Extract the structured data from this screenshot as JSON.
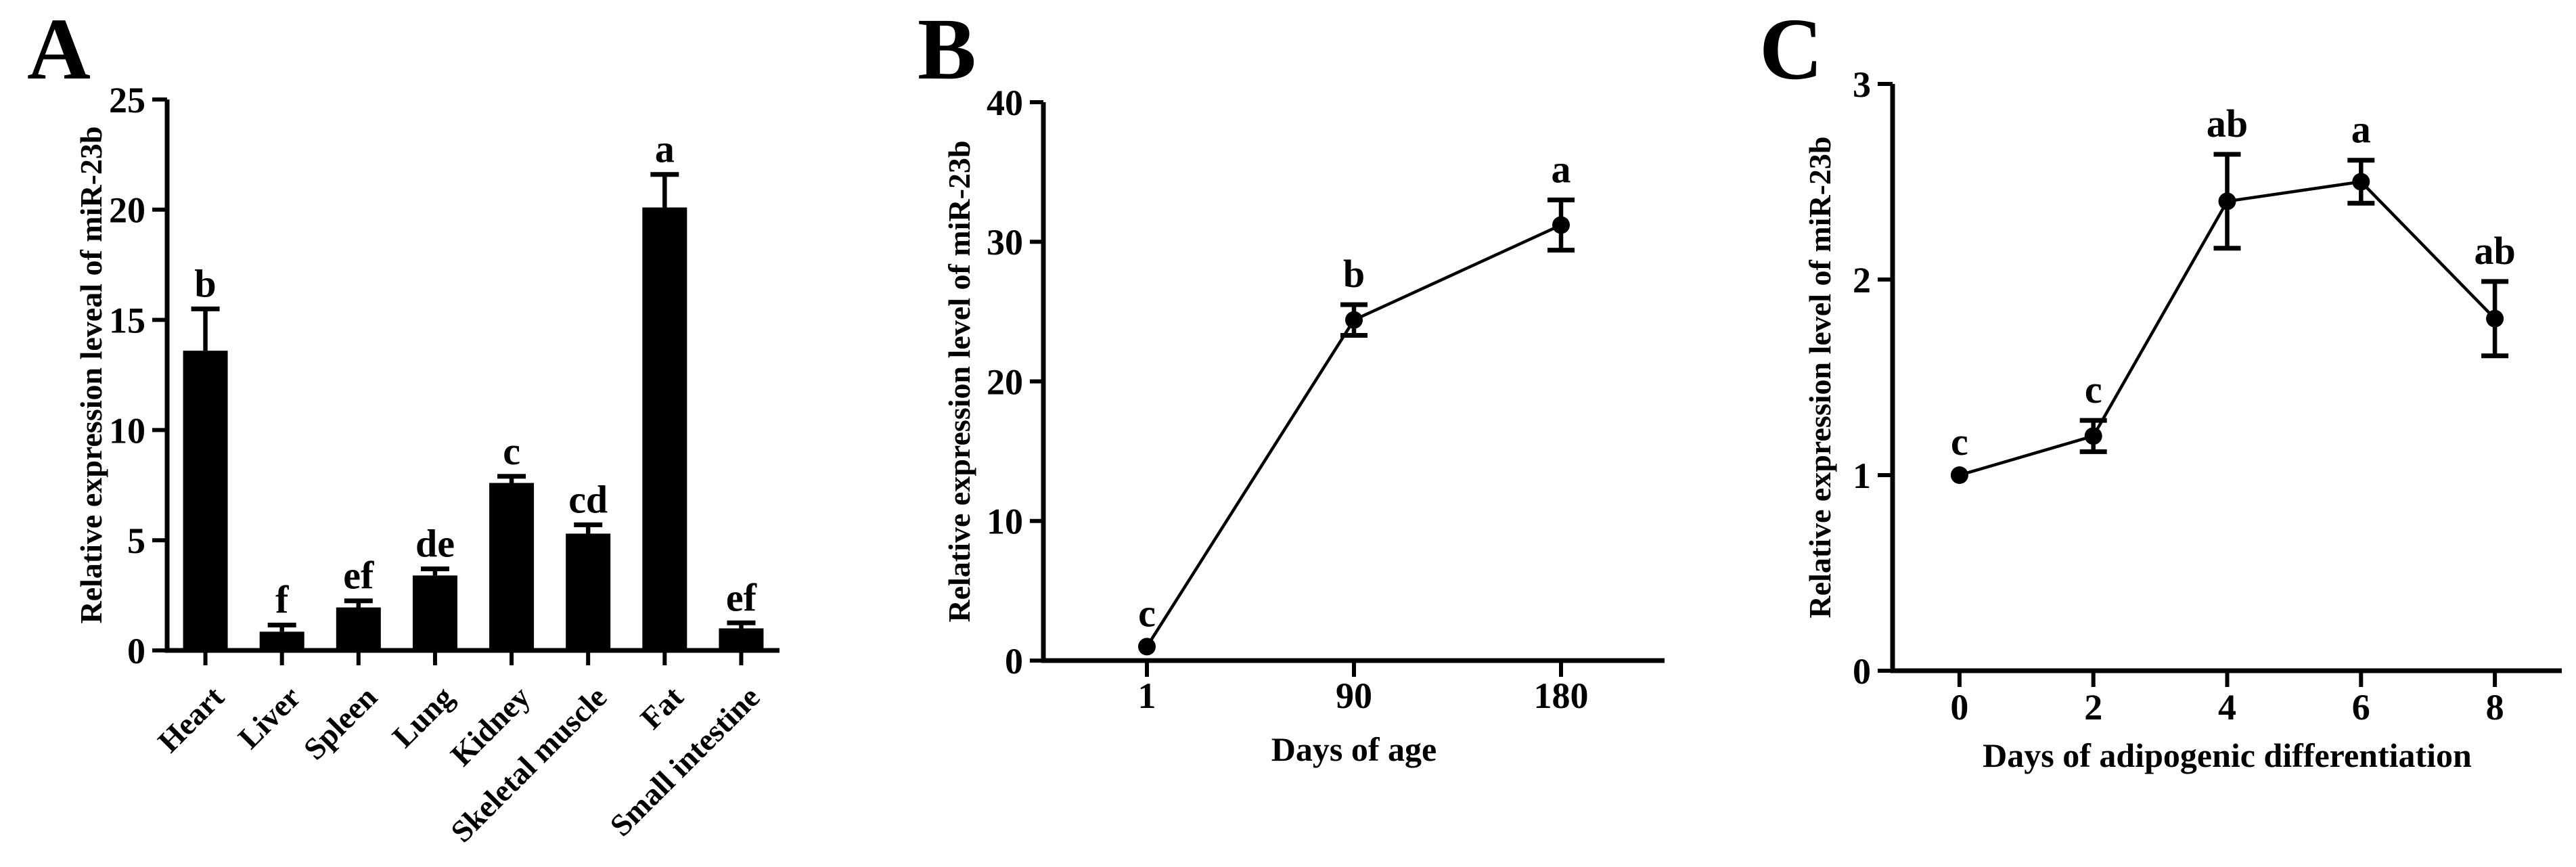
{
  "figure": {
    "background": "#ffffff",
    "ink_color": "#000000",
    "panels": [
      {
        "id": "A",
        "label": "A",
        "chart_data": {
          "type": "bar",
          "title": "",
          "xlabel": "",
          "ylabel": "Relative expression leveal of miR-23b",
          "ylim": [
            0,
            25
          ],
          "yticks": [
            0,
            5,
            10,
            15,
            20,
            25
          ],
          "grid": false,
          "categories": [
            "Heart",
            "Liver",
            "Spleen",
            "Lung",
            "Kidney",
            "Skeletal muscle",
            "Fat",
            "Small intestine"
          ],
          "values": [
            13.6,
            0.85,
            1.95,
            3.4,
            7.6,
            5.3,
            20.1,
            1.0
          ],
          "errors": [
            1.9,
            0.3,
            0.3,
            0.3,
            0.3,
            0.4,
            1.5,
            0.25
          ],
          "sig_letters": [
            "b",
            "f",
            "ef",
            "de",
            "c",
            "cd",
            "a",
            "ef"
          ],
          "bar_color": "#000000"
        }
      },
      {
        "id": "B",
        "label": "B",
        "chart_data": {
          "type": "line",
          "title": "",
          "xlabel": "Days of age",
          "ylabel": "Relative expression level of miR-23b",
          "ylim": [
            0,
            40
          ],
          "yticks": [
            0,
            10,
            20,
            30,
            40
          ],
          "grid": false,
          "categories": [
            "1",
            "90",
            "180"
          ],
          "values": [
            1.0,
            24.4,
            31.2
          ],
          "errors": [
            0,
            1.1,
            1.8
          ],
          "sig_letters": [
            "c",
            "b",
            "a"
          ],
          "line_color": "#000000",
          "marker": "circle"
        }
      },
      {
        "id": "C",
        "label": "C",
        "chart_data": {
          "type": "line",
          "title": "",
          "xlabel": "Days of adipogenic differentiation",
          "ylabel": "Relative expression level of miR-23b",
          "ylim": [
            0,
            3
          ],
          "yticks": [
            0,
            1,
            2,
            3
          ],
          "grid": false,
          "categories": [
            "0",
            "2",
            "4",
            "6",
            "8"
          ],
          "values": [
            1.0,
            1.2,
            2.4,
            2.5,
            1.8
          ],
          "errors": [
            0,
            0.08,
            0.24,
            0.11,
            0.19
          ],
          "sig_letters": [
            "c",
            "c",
            "ab",
            "a",
            "ab"
          ],
          "line_color": "#000000",
          "marker": "circle"
        }
      }
    ]
  }
}
